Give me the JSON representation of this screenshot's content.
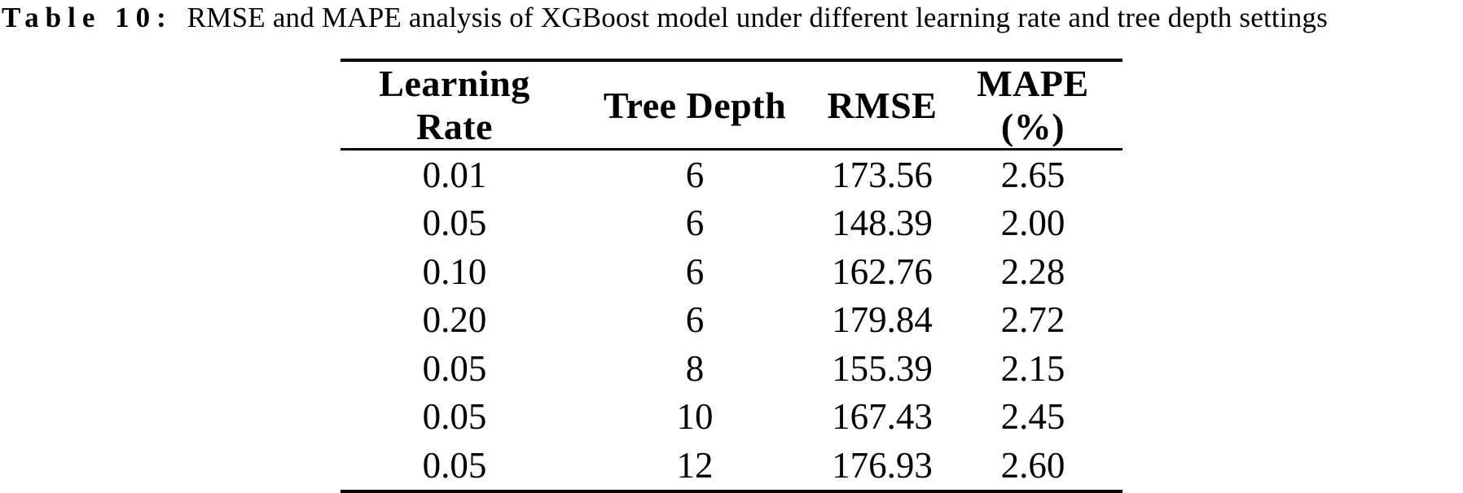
{
  "caption": {
    "label": "Table 10:",
    "text": "RMSE and MAPE analysis of XGBoost model under different learning rate and tree depth settings"
  },
  "table": {
    "headers": [
      "Learning Rate",
      "Tree Depth",
      "RMSE",
      "MAPE (%)"
    ],
    "rows": [
      [
        "0.01",
        "6",
        "173.56",
        "2.65"
      ],
      [
        "0.05",
        "6",
        "148.39",
        "2.00"
      ],
      [
        "0.10",
        "6",
        "162.76",
        "2.28"
      ],
      [
        "0.20",
        "6",
        "179.84",
        "2.72"
      ],
      [
        "0.05",
        "8",
        "155.39",
        "2.15"
      ],
      [
        "0.05",
        "10",
        "167.43",
        "2.45"
      ],
      [
        "0.05",
        "12",
        "176.93",
        "2.60"
      ]
    ]
  },
  "colors": {
    "text": "#000000",
    "background": "#ffffff",
    "rule": "#000000"
  }
}
